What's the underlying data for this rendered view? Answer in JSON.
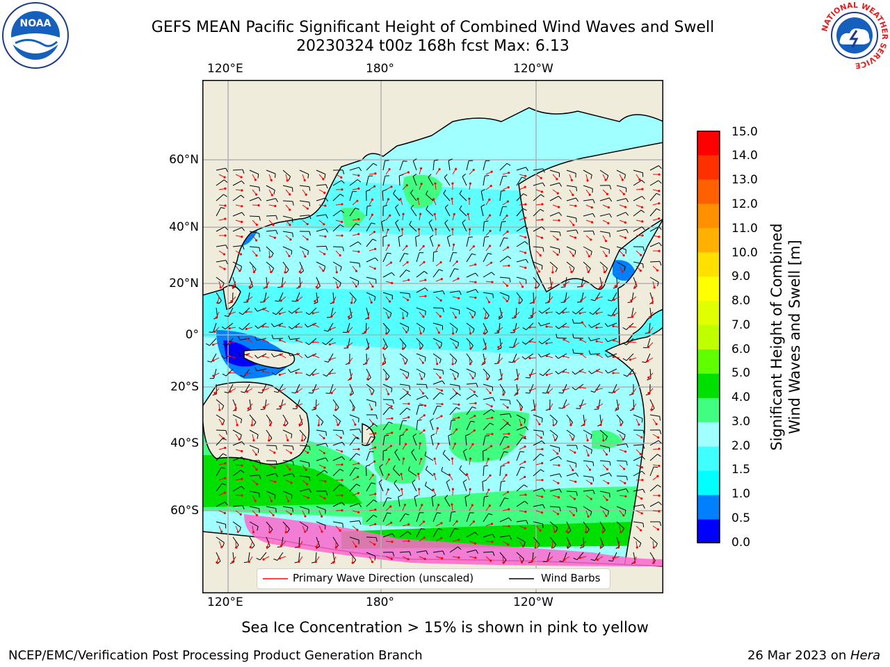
{
  "title_line1": "GEFS MEAN Pacific Significant Height of Combined Wind Waves and Swell",
  "title_line2": "20230324 t00z 168h fcst   Max: 6.13",
  "lon_labels_top": [
    "120°E",
    "180°",
    "120°W"
  ],
  "lon_labels_bottom": [
    "120°E",
    "180°",
    "120°W"
  ],
  "lat_labels": [
    "60°N",
    "40°N",
    "20°N",
    "0°",
    "20°S",
    "40°S",
    "60°S"
  ],
  "colorbar": {
    "label_line1": "Significant Height of Combined",
    "label_line2": "Wind Waves and Swell [m]",
    "ticks": [
      "15.0",
      "14.0",
      "13.0",
      "12.0",
      "11.0",
      "10.0",
      "9.0",
      "8.0",
      "7.0",
      "6.0",
      "5.0",
      "4.0",
      "3.0",
      "2.0",
      "1.5",
      "1.0",
      "0.5",
      "0.0"
    ],
    "colors_bottom_to_top": [
      "#0000ff",
      "#0080ff",
      "#00ffff",
      "#40ffff",
      "#a0ffff",
      "#40ff80",
      "#00e000",
      "#60ff00",
      "#c0ff00",
      "#e0ff00",
      "#ffff00",
      "#ffe000",
      "#ffb000",
      "#ff9000",
      "#ff6000",
      "#ff3000",
      "#ff0000"
    ]
  },
  "legend": {
    "primary_wave": "Primary Wave Direction (unscaled)",
    "wind_barbs": "Wind Barbs"
  },
  "caption": "Sea Ice Concentration > 15% is shown in pink to yellow",
  "footer_left": "NCEP/EMC/Verification Post Processing Product Generation Branch",
  "footer_right_date": "26 Mar 2023 on ",
  "footer_right_host": "Hera",
  "logos": {
    "left": "NOAA",
    "right_ring_text": "NATIONAL WEATHER SERVICE"
  },
  "colors": {
    "land": "#efecdc",
    "grid": "#b0b0b0",
    "wave_arrow": "#ff0000",
    "barb": "#000000",
    "sea_ice": "#ff66cc"
  }
}
